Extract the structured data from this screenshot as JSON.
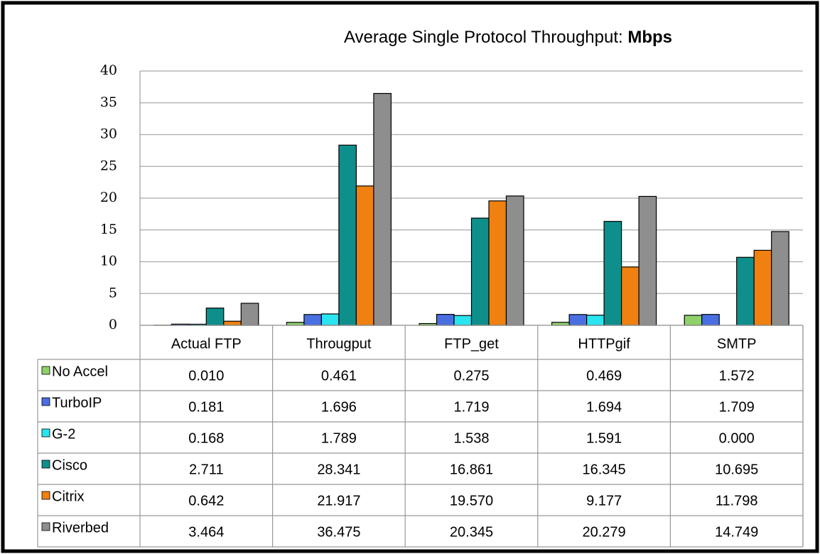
{
  "chart_data": {
    "type": "bar",
    "title": "Average Single Protocol Throughput:",
    "title_unit": "Mbps",
    "categories": [
      "Actual FTP",
      "Througput",
      "FTP_get",
      "HTTPgif",
      "SMTP"
    ],
    "series": [
      {
        "name": "No Accel",
        "color": "#8fd16a",
        "values": [
          0.01,
          0.461,
          0.275,
          0.469,
          1.572
        ],
        "value_labels": [
          "0.010",
          "0.461",
          "0.275",
          "0.469",
          "1.572"
        ]
      },
      {
        "name": "TurboIP",
        "color": "#4a6fe0",
        "values": [
          0.181,
          1.696,
          1.719,
          1.694,
          1.709
        ],
        "value_labels": [
          "0.181",
          "1.696",
          "1.719",
          "1.694",
          "1.709"
        ]
      },
      {
        "name": "G-2",
        "color": "#2ae4f0",
        "values": [
          0.168,
          1.789,
          1.538,
          1.591,
          0
        ],
        "value_labels": [
          "0.168",
          "1.789",
          "1.538",
          "1.591",
          "0.000"
        ]
      },
      {
        "name": "Cisco",
        "color": "#0f8f8c",
        "values": [
          2.711,
          28.341,
          16.861,
          16.345,
          10.695
        ],
        "value_labels": [
          "2.711",
          "28.341",
          "16.861",
          "16.345",
          "10.695"
        ]
      },
      {
        "name": "Citrix",
        "color": "#f08010",
        "values": [
          0.642,
          21.917,
          19.57,
          9.177,
          11.798
        ],
        "value_labels": [
          "0.642",
          "21.917",
          "19.570",
          "9.177",
          "11.798"
        ]
      },
      {
        "name": "Riverbed",
        "color": "#8e8e8e",
        "values": [
          3.464,
          36.475,
          20.345,
          20.279,
          14.749
        ],
        "value_labels": [
          "3.464",
          "36.475",
          "20.345",
          "20.279",
          "14.749"
        ]
      }
    ],
    "ylim": [
      0,
      40
    ],
    "yticks": [
      0,
      5,
      10,
      15,
      20,
      25,
      30,
      35,
      40
    ],
    "grid": true
  }
}
